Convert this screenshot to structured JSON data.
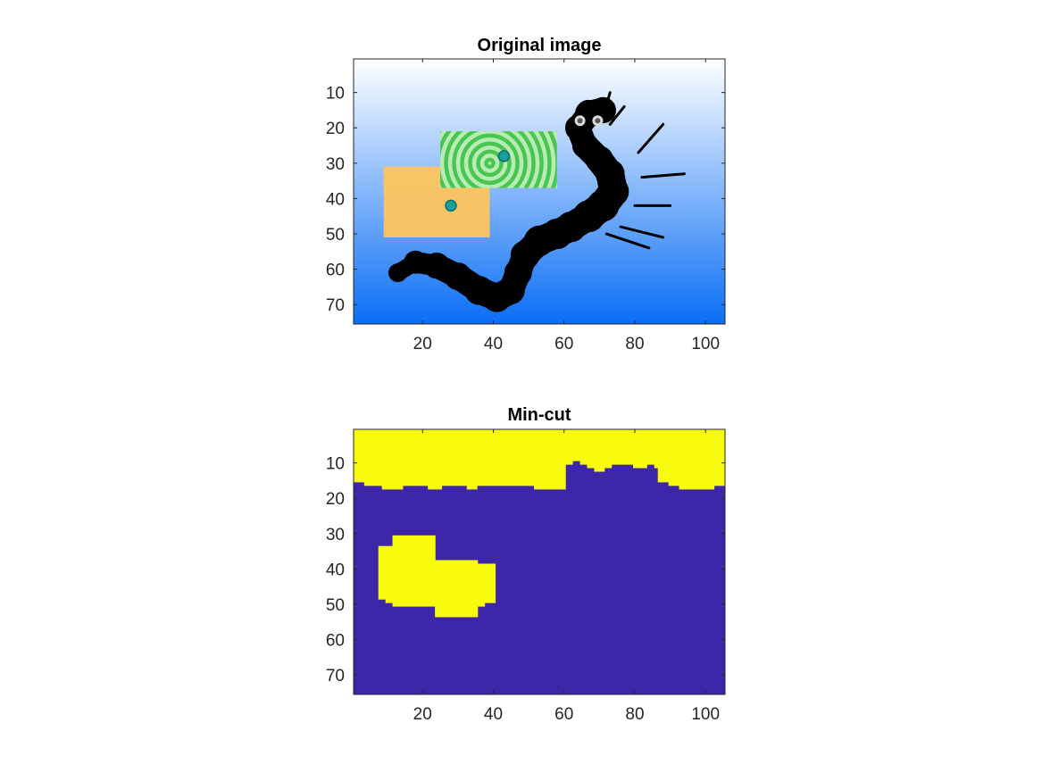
{
  "chart_data": [
    {
      "type": "image",
      "title": "Original image",
      "xlim": [
        0.5,
        105.5
      ],
      "ylim": [
        0.5,
        75.5
      ],
      "y_reversed": true,
      "xticks": [
        20,
        40,
        60,
        80,
        100
      ],
      "yticks": [
        10,
        20,
        30,
        40,
        50,
        60,
        70
      ],
      "background_gradient": {
        "top": "#ffffff",
        "bottom": "#0a6ef5"
      },
      "regions": [
        {
          "name": "orange-rectangle",
          "x": [
            9,
            39
          ],
          "y": [
            31,
            51
          ],
          "color": "#fdc45e"
        },
        {
          "name": "green-ring-rectangle",
          "x": [
            25,
            58
          ],
          "y": [
            21,
            37
          ],
          "color": "#49c552"
        }
      ],
      "seed_points": [
        {
          "x": 28,
          "y": 42,
          "color": "#1a9e9e"
        },
        {
          "x": 43,
          "y": 28,
          "color": "#1a9e9e"
        }
      ],
      "shape": {
        "name": "caterpillar-silhouette",
        "color": "#000000"
      }
    },
    {
      "type": "heatmap",
      "title": "Min-cut",
      "xlim": [
        0.5,
        105.5
      ],
      "ylim": [
        0.5,
        75.5
      ],
      "y_reversed": true,
      "xticks": [
        20,
        40,
        60,
        80,
        100
      ],
      "yticks": [
        10,
        20,
        30,
        40,
        50,
        60,
        70
      ],
      "colors": {
        "0": "#3e26a8",
        "1": "#f9fb0e"
      },
      "top_boundary": [
        [
          1,
          16
        ],
        [
          4,
          17
        ],
        [
          7,
          17
        ],
        [
          9,
          18
        ],
        [
          12,
          18
        ],
        [
          15,
          17
        ],
        [
          18,
          17
        ],
        [
          22,
          18
        ],
        [
          26,
          17
        ],
        [
          30,
          17
        ],
        [
          33,
          18
        ],
        [
          36,
          17
        ],
        [
          41,
          17
        ],
        [
          45,
          17
        ],
        [
          48,
          17
        ],
        [
          52,
          18
        ],
        [
          60,
          18
        ],
        [
          61,
          11
        ],
        [
          63,
          10
        ],
        [
          65,
          11
        ],
        [
          67,
          12
        ],
        [
          69,
          13
        ],
        [
          72,
          12
        ],
        [
          74,
          11
        ],
        [
          77,
          11
        ],
        [
          80,
          12
        ],
        [
          84,
          11
        ],
        [
          86,
          12
        ],
        [
          87,
          16
        ],
        [
          90,
          17
        ],
        [
          93,
          18
        ],
        [
          100,
          18
        ],
        [
          103,
          17
        ],
        [
          105,
          17
        ]
      ],
      "blob_rows": [
        [
          31,
          12,
          23
        ],
        [
          32,
          12,
          23
        ],
        [
          33,
          12,
          23
        ],
        [
          34,
          8,
          23
        ],
        [
          35,
          8,
          23
        ],
        [
          36,
          8,
          23
        ],
        [
          37,
          8,
          23
        ],
        [
          38,
          8,
          35
        ],
        [
          39,
          8,
          40
        ],
        [
          40,
          8,
          40
        ],
        [
          41,
          8,
          40
        ],
        [
          42,
          8,
          40
        ],
        [
          43,
          8,
          40
        ],
        [
          44,
          8,
          40
        ],
        [
          45,
          8,
          40
        ],
        [
          46,
          8,
          40
        ],
        [
          47,
          8,
          40
        ],
        [
          48,
          8,
          40
        ],
        [
          49,
          10,
          40
        ],
        [
          50,
          12,
          37
        ],
        [
          51,
          24,
          35
        ],
        [
          52,
          24,
          35
        ],
        [
          53,
          24,
          35
        ]
      ]
    }
  ]
}
